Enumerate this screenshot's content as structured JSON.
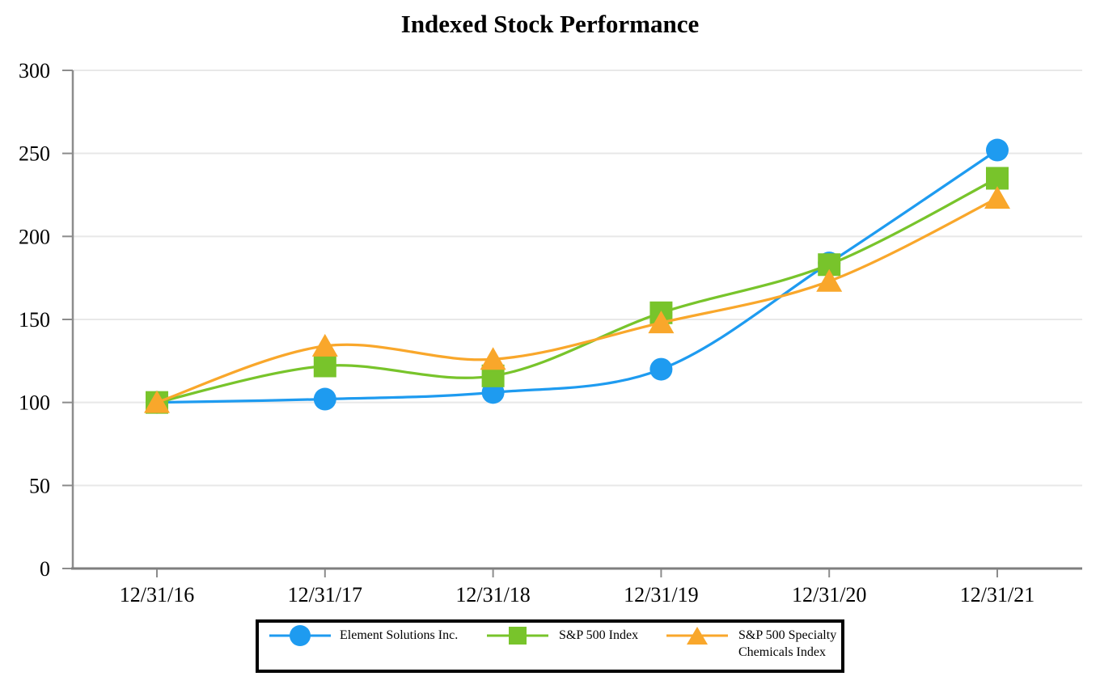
{
  "title": "Indexed Stock Performance",
  "colors": {
    "background": "#ffffff",
    "grid": "#e8e8e8",
    "y_axis": "#8c8c8c",
    "x_axis": "#7f7f7f",
    "tick": "#8c8c8c",
    "text": "#000000",
    "legend_border": "#000000"
  },
  "chart_data": {
    "type": "line",
    "title": "Indexed Stock Performance",
    "line_style": "smooth",
    "grid": "horizontal-light",
    "legend_position": "bottom-center",
    "xlabel": "",
    "ylabel": "",
    "ylim": [
      0,
      300
    ],
    "ytick_step": 50,
    "yticks": [
      0,
      50,
      100,
      150,
      200,
      250,
      300
    ],
    "categories": [
      "12/31/16",
      "12/31/17",
      "12/31/18",
      "12/31/19",
      "12/31/20",
      "12/31/21"
    ],
    "series": [
      {
        "name": "Element Solutions Inc.",
        "marker": "circle",
        "color": "#1e9bf0",
        "values": [
          100,
          102,
          106,
          120,
          184,
          252
        ]
      },
      {
        "name": "S&P 500 Index",
        "marker": "square",
        "color": "#78c42b",
        "values": [
          100,
          122,
          116,
          154,
          183,
          235
        ]
      },
      {
        "name": "S&P 500 Specialty Chemicals Index",
        "marker": "triangle",
        "color": "#f9a72b",
        "values": [
          100,
          134,
          126,
          148,
          173,
          223
        ]
      }
    ]
  }
}
